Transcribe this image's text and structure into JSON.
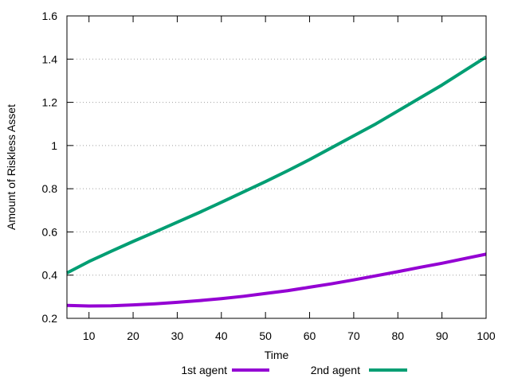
{
  "chart_data": {
    "type": "line",
    "title": "",
    "xlabel": "Time",
    "ylabel": "Amount of Riskless Asset",
    "xlim": [
      5,
      100
    ],
    "ylim": [
      0.2,
      1.6
    ],
    "xticks": [
      10,
      20,
      30,
      40,
      50,
      60,
      70,
      80,
      90,
      100
    ],
    "yticks": [
      0.2,
      0.4,
      0.6,
      0.8,
      1,
      1.2,
      1.4,
      1.6
    ],
    "ytick_labels": [
      "0.2",
      "0.4",
      "0.6",
      "0.8",
      "1",
      "1.2",
      "1.4",
      "1.6"
    ],
    "grid": "horizontal-dotted",
    "legend_position": "bottom",
    "x": [
      5,
      10,
      15,
      20,
      25,
      30,
      35,
      40,
      45,
      50,
      55,
      60,
      65,
      70,
      75,
      80,
      85,
      90,
      95,
      100
    ],
    "series": [
      {
        "name": "1st agent",
        "color": "#9400d3",
        "values": [
          0.26,
          0.257,
          0.258,
          0.262,
          0.267,
          0.274,
          0.282,
          0.291,
          0.302,
          0.315,
          0.328,
          0.344,
          0.36,
          0.378,
          0.397,
          0.416,
          0.436,
          0.455,
          0.476,
          0.497
        ]
      },
      {
        "name": "2nd agent",
        "color": "#009e73",
        "values": [
          0.41,
          0.463,
          0.51,
          0.556,
          0.6,
          0.645,
          0.69,
          0.737,
          0.785,
          0.833,
          0.883,
          0.935,
          0.99,
          1.045,
          1.1,
          1.16,
          1.22,
          1.28,
          1.345,
          1.41
        ]
      }
    ]
  }
}
